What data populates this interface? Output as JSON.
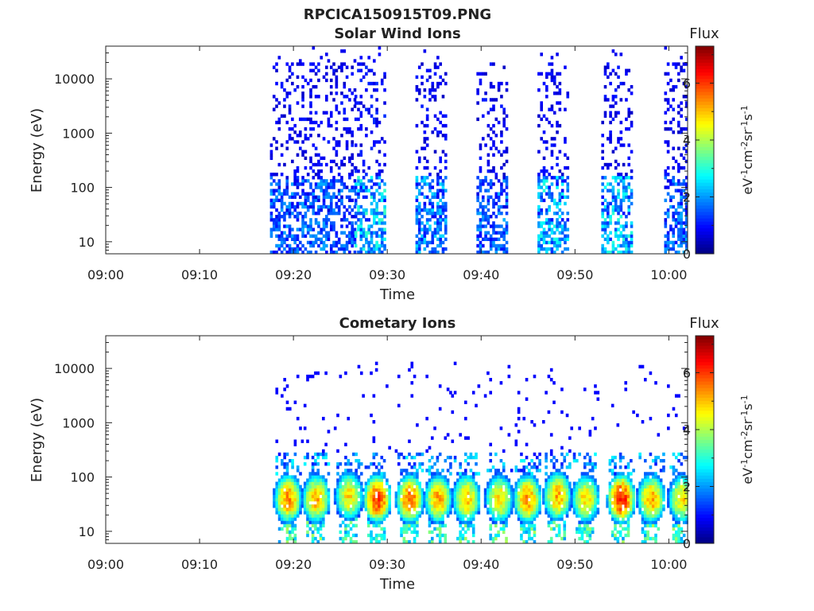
{
  "figure": {
    "filename": "RPCICA150915T09.PNG",
    "background": "#ffffff"
  },
  "chart_data": [
    {
      "type": "heatmap",
      "title": "Solar Wind Ions",
      "xlabel": "Time",
      "ylabel": "Energy (eV)",
      "x_ticks": [
        "09:00",
        "09:10",
        "09:20",
        "09:30",
        "09:40",
        "09:50",
        "10:00"
      ],
      "x_range_minutes_after_0900": [
        0,
        62
      ],
      "y_scale": "log",
      "y_ticks": [
        {
          "value": 10,
          "label": "10"
        },
        {
          "value": 100,
          "label": "100"
        },
        {
          "value": 1000,
          "label": "1000"
        },
        {
          "value": 10000,
          "label": "10000"
        }
      ],
      "y_range_eV": [
        6,
        40000
      ],
      "colorbar": {
        "title": "Flux",
        "label": "eV-1cm-2sr-1s-1",
        "range": [
          0,
          7.3
        ],
        "ticks": [
          0,
          2,
          4,
          6
        ],
        "colormap": "jet"
      },
      "bursts": [
        {
          "start": 17.5,
          "end": 23.6,
          "low_level": 2.2,
          "sparse_level": 0.8
        },
        {
          "start": 23.6,
          "end": 26.5,
          "low_level": 2.0,
          "sparse_level": 0.8
        },
        {
          "start": 26.5,
          "end": 29.8,
          "low_level": 3.2,
          "sparse_level": 0.9
        },
        {
          "start": 33.0,
          "end": 36.3,
          "low_level": 2.6,
          "sparse_level": 0.8
        },
        {
          "start": 39.5,
          "end": 42.7,
          "low_level": 2.2,
          "sparse_level": 0.8
        },
        {
          "start": 46.0,
          "end": 49.3,
          "low_level": 3.0,
          "sparse_level": 0.8
        },
        {
          "start": 52.8,
          "end": 56.0,
          "low_level": 3.1,
          "sparse_level": 0.8
        },
        {
          "start": 59.5,
          "end": 62.0,
          "low_level": 2.2,
          "sparse_level": 0.8
        }
      ]
    },
    {
      "type": "heatmap",
      "title": "Cometary Ions",
      "xlabel": "Time",
      "ylabel": "Energy (eV)",
      "x_ticks": [
        "09:00",
        "09:10",
        "09:20",
        "09:30",
        "09:40",
        "09:50",
        "10:00"
      ],
      "x_range_minutes_after_0900": [
        0,
        62
      ],
      "y_scale": "log",
      "y_ticks": [
        {
          "value": 10,
          "label": "10"
        },
        {
          "value": 100,
          "label": "100"
        },
        {
          "value": 1000,
          "label": "1000"
        },
        {
          "value": 10000,
          "label": "10000"
        }
      ],
      "y_range_eV": [
        6,
        40000
      ],
      "colorbar": {
        "title": "Flux",
        "label": "eV-1cm-2sr-1s-1",
        "range": [
          0,
          7.3
        ],
        "ticks": [
          0,
          2,
          4,
          6
        ],
        "colormap": "jet"
      },
      "blobs": [
        {
          "center": 19.3,
          "peak_eV": 40,
          "peak_level": 5.6
        },
        {
          "center": 22.3,
          "peak_eV": 40,
          "peak_level": 5.4
        },
        {
          "center": 25.8,
          "peak_eV": 45,
          "peak_level": 5.0
        },
        {
          "center": 28.8,
          "peak_eV": 40,
          "peak_level": 6.3
        },
        {
          "center": 32.3,
          "peak_eV": 40,
          "peak_level": 5.9
        },
        {
          "center": 35.3,
          "peak_eV": 40,
          "peak_level": 5.4
        },
        {
          "center": 38.3,
          "peak_eV": 40,
          "peak_level": 5.2
        },
        {
          "center": 41.8,
          "peak_eV": 40,
          "peak_level": 5.0
        },
        {
          "center": 44.8,
          "peak_eV": 40,
          "peak_level": 5.6
        },
        {
          "center": 48.0,
          "peak_eV": 45,
          "peak_level": 5.4
        },
        {
          "center": 51.0,
          "peak_eV": 40,
          "peak_level": 5.0
        },
        {
          "center": 54.8,
          "peak_eV": 40,
          "peak_level": 6.5
        },
        {
          "center": 58.0,
          "peak_eV": 40,
          "peak_level": 5.4
        },
        {
          "center": 61.3,
          "peak_eV": 40,
          "peak_level": 5.0
        }
      ]
    }
  ]
}
